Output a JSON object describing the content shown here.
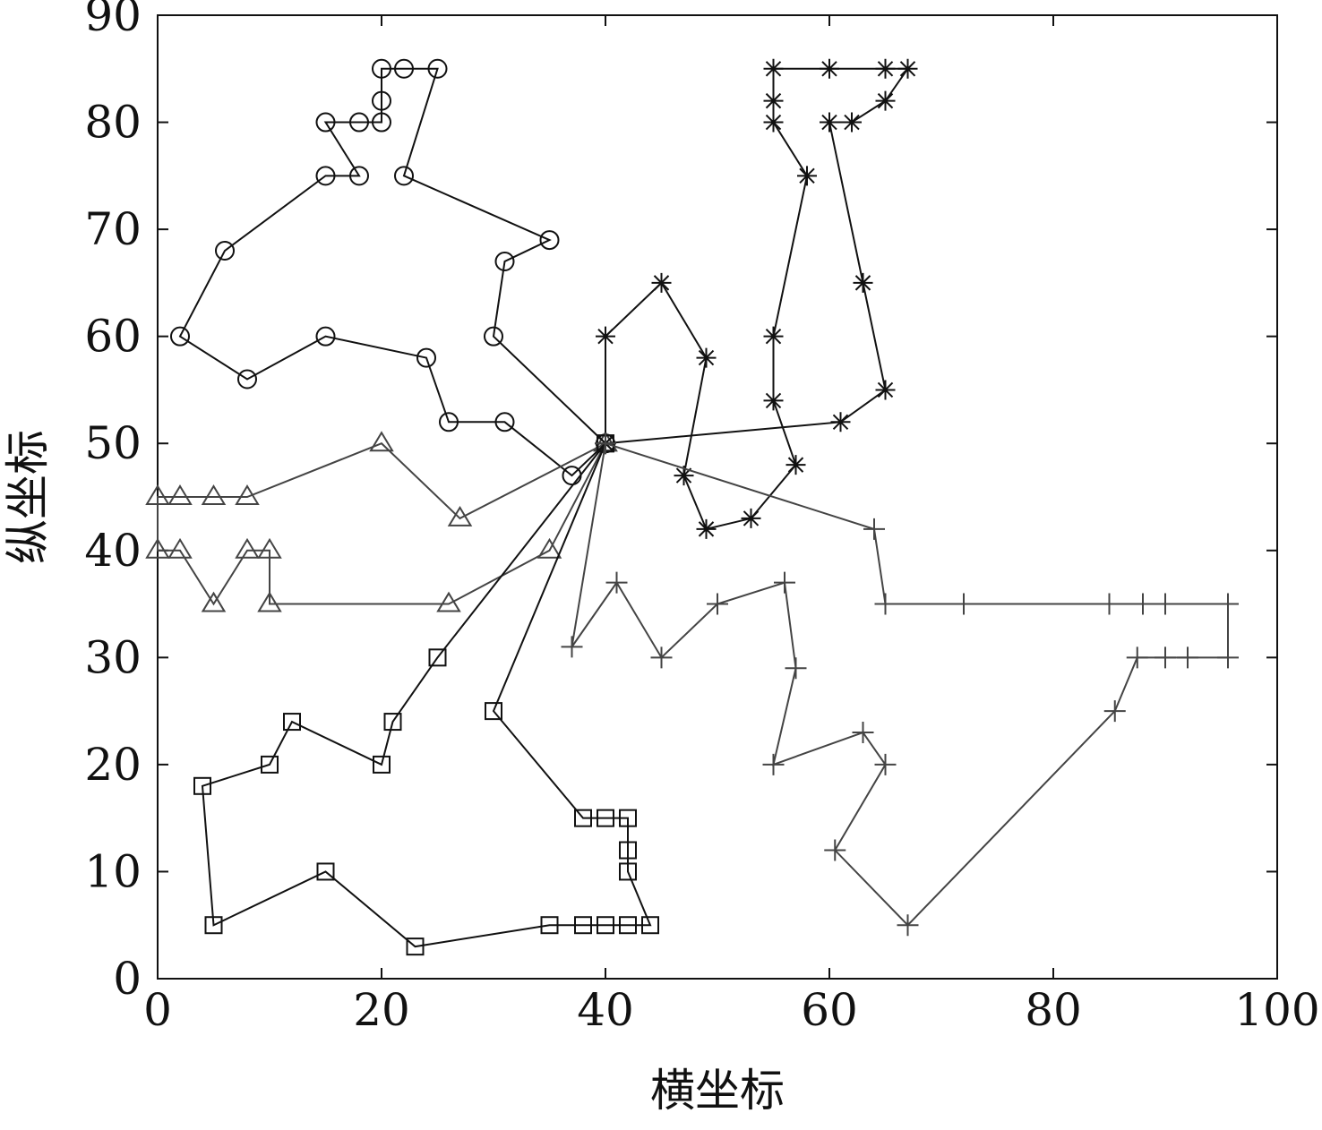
{
  "chart_data": {
    "type": "line",
    "xlabel": "横坐标",
    "ylabel": "纵坐标",
    "xlim": [
      0,
      100
    ],
    "ylim": [
      0,
      90
    ],
    "xticks": [
      0,
      20,
      40,
      60,
      80,
      100
    ],
    "yticks": [
      0,
      10,
      20,
      30,
      40,
      50,
      60,
      70,
      80,
      90
    ],
    "series": [
      {
        "marker": "circle",
        "color": "#111111",
        "x": [
          40,
          37,
          31,
          26,
          24,
          15,
          8,
          2,
          6,
          15,
          18,
          15,
          18,
          20,
          20,
          20,
          22,
          25,
          22,
          35,
          31,
          30,
          40
        ],
        "y": [
          50,
          47,
          52,
          52,
          58,
          60,
          56,
          60,
          68,
          75,
          75,
          80,
          80,
          80,
          82,
          85,
          85,
          85,
          75,
          69,
          67,
          60,
          50
        ]
      },
      {
        "marker": "triangle",
        "color": "#444444",
        "x": [
          40,
          35,
          26,
          10,
          10,
          8,
          5,
          2,
          0,
          0,
          2,
          5,
          8,
          20,
          27,
          40
        ],
        "y": [
          50,
          40,
          35,
          35,
          40,
          40,
          35,
          40,
          40,
          45,
          45,
          45,
          45,
          50,
          43,
          50
        ]
      },
      {
        "marker": "square",
        "color": "#111111",
        "x": [
          40,
          25,
          21,
          20,
          12,
          10,
          4,
          5,
          15,
          23,
          35,
          38,
          40,
          42,
          44,
          42,
          42,
          42,
          40,
          38,
          30,
          40
        ],
        "y": [
          50,
          30,
          24,
          20,
          24,
          20,
          18,
          5,
          10,
          3,
          5,
          5,
          5,
          5,
          5,
          10,
          12,
          15,
          15,
          15,
          25,
          50
        ]
      },
      {
        "marker": "star",
        "color": "#111111",
        "x": [
          40,
          61,
          65,
          63,
          60,
          62,
          65,
          67,
          65,
          60,
          55,
          55,
          55,
          58,
          55,
          55,
          57,
          53,
          49,
          47,
          49,
          45,
          40,
          40
        ],
        "y": [
          50,
          52,
          55,
          65,
          80,
          80,
          82,
          85,
          85,
          85,
          85,
          82,
          80,
          75,
          60,
          54,
          48,
          43,
          42,
          47,
          58,
          65,
          60,
          50
        ]
      },
      {
        "marker": "plus",
        "color": "#444444",
        "x": [
          40,
          64,
          65,
          72,
          85,
          88,
          90,
          95.6,
          95.6,
          92,
          90,
          87.5,
          85.5,
          67,
          60.5,
          65,
          63,
          55,
          57,
          56,
          50,
          45,
          41,
          37,
          40
        ],
        "y": [
          50,
          42,
          35,
          35,
          35,
          35,
          35,
          35,
          30,
          30,
          30,
          30,
          25,
          5,
          12,
          20,
          23,
          20,
          29,
          37,
          35,
          30,
          37,
          31,
          50
        ]
      }
    ]
  }
}
